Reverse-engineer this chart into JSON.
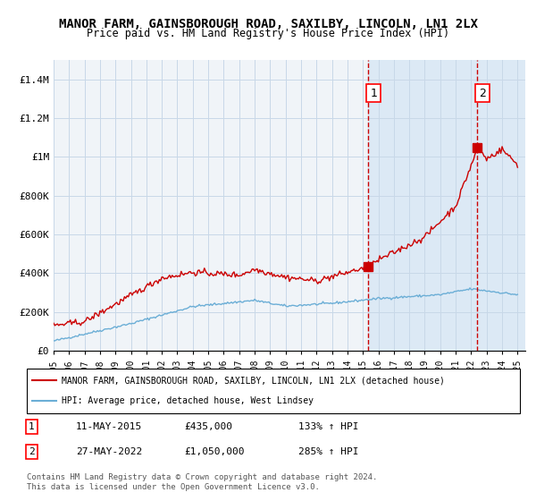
{
  "title_line1": "MANOR FARM, GAINSBOROUGH ROAD, SAXILBY, LINCOLN, LN1 2LX",
  "title_line2": "Price paid vs. HM Land Registry's House Price Index (HPI)",
  "title_fontsize": 11,
  "subtitle_fontsize": 9.5,
  "ylabel_ticks": [
    "£0",
    "£200K",
    "£400K",
    "£600K",
    "£800K",
    "£1M",
    "£1.2M",
    "£1.4M"
  ],
  "ytick_values": [
    0,
    200000,
    400000,
    600000,
    800000,
    1000000,
    1200000,
    1400000
  ],
  "ylim": [
    0,
    1500000
  ],
  "xlim_start": 1995.0,
  "xlim_end": 2025.5,
  "xticks": [
    1995,
    1996,
    1997,
    1998,
    1999,
    2000,
    2001,
    2002,
    2003,
    2004,
    2005,
    2006,
    2007,
    2008,
    2009,
    2010,
    2011,
    2012,
    2013,
    2014,
    2015,
    2016,
    2017,
    2018,
    2019,
    2020,
    2021,
    2022,
    2023,
    2024,
    2025
  ],
  "sale1_x": 2015.36,
  "sale1_y": 435000,
  "sale2_x": 2022.4,
  "sale2_y": 1050000,
  "sale1_label": "1",
  "sale2_label": "2",
  "shade_start": 2015.36,
  "shade_end": 2025.5,
  "shade_color": "#dce9f5",
  "hpi_line_color": "#6baed6",
  "price_line_color": "#cc0000",
  "dashed_line_color": "#cc0000",
  "grid_color": "#c8d8e8",
  "bg_color": "#f0f4f8",
  "legend_label1": "MANOR FARM, GAINSBOROUGH ROAD, SAXILBY, LINCOLN, LN1 2LX (detached house)",
  "legend_label2": "HPI: Average price, detached house, West Lindsey",
  "table_row1": [
    "1",
    "11-MAY-2015",
    "£435,000",
    "133% ↑ HPI"
  ],
  "table_row2": [
    "2",
    "27-MAY-2022",
    "£1,050,000",
    "285% ↑ HPI"
  ],
  "footer": "Contains HM Land Registry data © Crown copyright and database right 2024.\nThis data is licensed under the Open Government Licence v3.0."
}
